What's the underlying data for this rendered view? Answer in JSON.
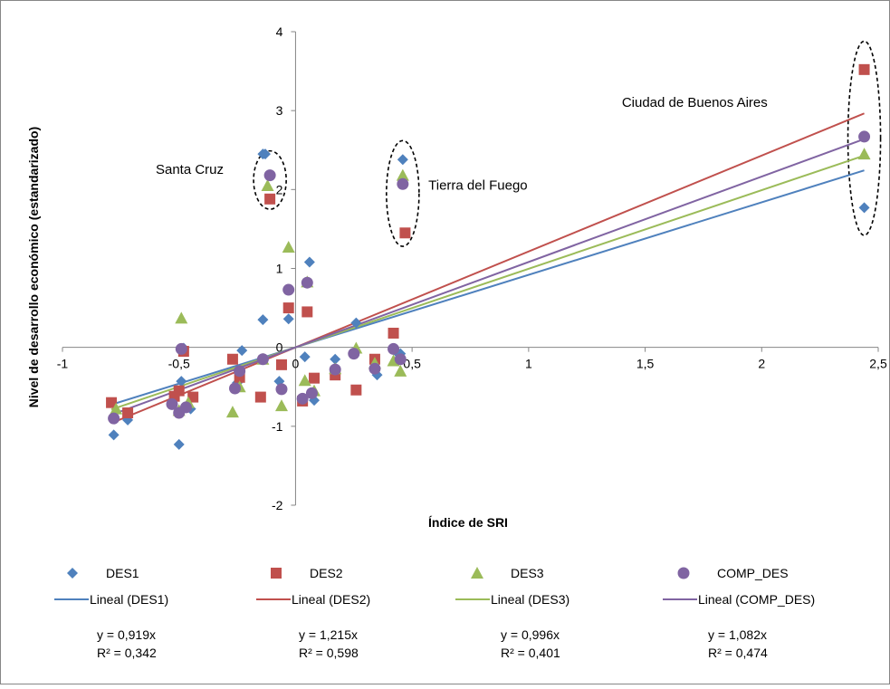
{
  "chart_data": {
    "type": "scatter",
    "xlabel": "Índice de SRI",
    "ylabel": "Nivel de desarrollo económico (estandarizado)",
    "xlim": [
      -1,
      2.5
    ],
    "ylim": [
      -2,
      4
    ],
    "x_ticks": [
      -1,
      -0.5,
      0,
      0.5,
      1,
      1.5,
      2,
      2.5
    ],
    "x_tick_labels": [
      "-1",
      "-0,5",
      "0",
      "0,5",
      "1",
      "1,5",
      "2",
      "2,5"
    ],
    "y_ticks": [
      -2,
      -1,
      0,
      1,
      2,
      3,
      4
    ],
    "y_tick_labels": [
      "-2",
      "-1",
      "0",
      "1",
      "2",
      "3",
      "4"
    ],
    "grid": false,
    "legend_position": "bottom",
    "annotations": [
      {
        "text": "Santa Cruz",
        "x": -0.6,
        "y": 2.2
      },
      {
        "text": "Tierra del Fuego",
        "x": 0.57,
        "y": 2.0
      },
      {
        "text": "Ciudad de Buenos Aires",
        "x": 1.4,
        "y": 3.05
      }
    ],
    "ellipses": [
      {
        "cx": -0.11,
        "cy": 2.12,
        "rx": 0.07,
        "ry": 0.37
      },
      {
        "cx": 0.46,
        "cy": 1.95,
        "rx": 0.07,
        "ry": 0.67
      },
      {
        "cx": 2.44,
        "cy": 2.65,
        "rx": 0.07,
        "ry": 1.23
      }
    ],
    "series": [
      {
        "name": "DES1",
        "marker": "diamond",
        "color": "#4f81bd",
        "points": [
          [
            -0.78,
            -1.11
          ],
          [
            -0.72,
            -0.92
          ],
          [
            -0.5,
            -1.23
          ],
          [
            -0.49,
            -0.43
          ],
          [
            -0.48,
            -0.01
          ],
          [
            -0.45,
            -0.78
          ],
          [
            -0.25,
            -0.45
          ],
          [
            -0.23,
            -0.04
          ],
          [
            -0.14,
            0.35
          ],
          [
            -0.14,
            2.45
          ],
          [
            -0.13,
            2.45
          ],
          [
            -0.07,
            -0.43
          ],
          [
            -0.03,
            0.36
          ],
          [
            0.04,
            -0.12
          ],
          [
            0.05,
            0.83
          ],
          [
            0.06,
            1.08
          ],
          [
            0.08,
            -0.67
          ],
          [
            0.17,
            -0.15
          ],
          [
            0.26,
            0.31
          ],
          [
            0.35,
            -0.35
          ],
          [
            0.43,
            -0.05
          ],
          [
            0.45,
            -0.08
          ],
          [
            0.46,
            2.38
          ],
          [
            2.44,
            1.77
          ]
        ]
      },
      {
        "name": "DES2",
        "marker": "square",
        "color": "#c0504d",
        "points": [
          [
            -0.79,
            -0.7
          ],
          [
            -0.72,
            -0.83
          ],
          [
            -0.52,
            -0.62
          ],
          [
            -0.5,
            -0.55
          ],
          [
            -0.48,
            -0.05
          ],
          [
            -0.44,
            -0.63
          ],
          [
            -0.27,
            -0.15
          ],
          [
            -0.24,
            -0.38
          ],
          [
            -0.15,
            -0.63
          ],
          [
            -0.11,
            1.88
          ],
          [
            -0.06,
            -0.22
          ],
          [
            -0.03,
            0.5
          ],
          [
            0.03,
            -0.68
          ],
          [
            0.05,
            0.45
          ],
          [
            0.08,
            -0.39
          ],
          [
            0.17,
            -0.35
          ],
          [
            0.26,
            -0.54
          ],
          [
            0.34,
            -0.15
          ],
          [
            0.42,
            0.18
          ],
          [
            0.47,
            1.45
          ],
          [
            2.44,
            3.52
          ]
        ]
      },
      {
        "name": "DES3",
        "marker": "triangle",
        "color": "#9bbb59",
        "points": [
          [
            -0.77,
            -0.78
          ],
          [
            -0.5,
            -0.8
          ],
          [
            -0.49,
            0.37
          ],
          [
            -0.46,
            -0.7
          ],
          [
            -0.27,
            -0.82
          ],
          [
            -0.24,
            -0.5
          ],
          [
            -0.14,
            -0.15
          ],
          [
            -0.12,
            2.05
          ],
          [
            -0.06,
            -0.74
          ],
          [
            -0.03,
            1.27
          ],
          [
            0.04,
            -0.42
          ],
          [
            0.05,
            0.83
          ],
          [
            0.08,
            -0.55
          ],
          [
            0.17,
            -0.27
          ],
          [
            0.26,
            -0.01
          ],
          [
            0.34,
            -0.2
          ],
          [
            0.42,
            -0.17
          ],
          [
            0.45,
            -0.3
          ],
          [
            0.46,
            2.18
          ],
          [
            2.44,
            2.45
          ]
        ]
      },
      {
        "name": "COMP_DES",
        "marker": "circle",
        "color": "#8064a2",
        "points": [
          [
            -0.78,
            -0.9
          ],
          [
            -0.53,
            -0.72
          ],
          [
            -0.5,
            -0.83
          ],
          [
            -0.49,
            -0.02
          ],
          [
            -0.47,
            -0.76
          ],
          [
            -0.26,
            -0.52
          ],
          [
            -0.24,
            -0.3
          ],
          [
            -0.14,
            -0.15
          ],
          [
            -0.11,
            2.18
          ],
          [
            -0.06,
            -0.53
          ],
          [
            -0.03,
            0.73
          ],
          [
            0.03,
            -0.65
          ],
          [
            0.05,
            0.82
          ],
          [
            0.07,
            -0.58
          ],
          [
            0.17,
            -0.28
          ],
          [
            0.25,
            -0.08
          ],
          [
            0.34,
            -0.27
          ],
          [
            0.42,
            -0.02
          ],
          [
            0.45,
            -0.15
          ],
          [
            0.46,
            2.07
          ],
          [
            2.44,
            2.67
          ]
        ]
      }
    ],
    "trendlines": [
      {
        "name": "Lineal (DES1)",
        "slope": 0.919,
        "color": "#4f81bd",
        "x_range": [
          -0.79,
          2.44
        ]
      },
      {
        "name": "Lineal (DES2)",
        "slope": 1.215,
        "color": "#c0504d",
        "x_range": [
          -0.79,
          2.44
        ]
      },
      {
        "name": "Lineal (DES3)",
        "slope": 0.996,
        "color": "#9bbb59",
        "x_range": [
          -0.79,
          2.44
        ]
      },
      {
        "name": "Lineal (COMP_DES)",
        "slope": 1.082,
        "color": "#8064a2",
        "x_range": [
          -0.79,
          2.44
        ]
      }
    ],
    "equations": [
      {
        "eq": "y = 0,919x",
        "r2": "R² = 0,342"
      },
      {
        "eq": "y = 1,215x",
        "r2": "R² = 0,598"
      },
      {
        "eq": "y = 0,996x",
        "r2": "R² = 0,401"
      },
      {
        "eq": "y = 1,082x",
        "r2": "R² = 0,474"
      }
    ]
  }
}
